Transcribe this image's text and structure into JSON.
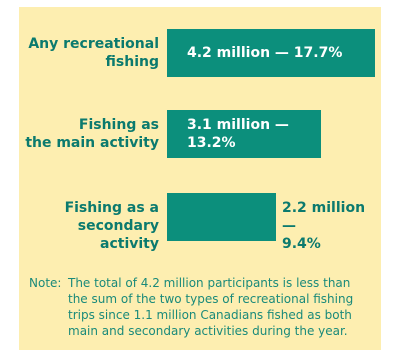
{
  "colors": {
    "background": "#fdeeb0",
    "bar": "#0c8f7c",
    "text": "#0b7a6e"
  },
  "chart_data": {
    "type": "bar",
    "orientation": "horizontal",
    "categories": [
      "Any recreational fishing",
      "Fishing as the main activity",
      "Fishing as a secondary activity"
    ],
    "category_lines": [
      [
        "Any recreational",
        "fishing"
      ],
      [
        "Fishing as",
        "the main activity"
      ],
      [
        "Fishing as a",
        "secondary activity"
      ]
    ],
    "values": [
      4.2,
      3.1,
      2.2
    ],
    "percentages": [
      17.7,
      13.2,
      9.4
    ],
    "value_labels": [
      [
        "4.2 million — 17.7%"
      ],
      [
        "3.1 million —",
        "13.2%"
      ],
      [
        "2.2 million —",
        "9.4%"
      ]
    ],
    "unit": "million",
    "xlim": [
      0,
      4.2
    ]
  },
  "note": {
    "label": "Note:",
    "text": "The total of 4.2 million participants is less than the sum of the two types of recreational fishing trips since 1.1 million Canadians fished as both main and secondary activities during the year."
  }
}
